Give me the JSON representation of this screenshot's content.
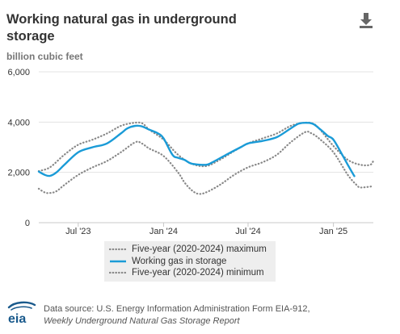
{
  "header": {
    "title": "Working natural gas in underground storage",
    "unit_label": "billion cubic feet",
    "download_icon": "download-icon"
  },
  "colors": {
    "working_gas": "#1a9bd7",
    "five_year": "#888888",
    "grid": "#e3e3e3",
    "axis_text": "#333333",
    "legend_bg": "#eeeeee",
    "logo_blue": "#1a5a8c"
  },
  "chart_data": {
    "type": "line",
    "title": "Working natural gas in underground storage",
    "ylabel": "billion cubic feet",
    "xlim": [
      "2023-04-07",
      "2025-03-28"
    ],
    "ylim": [
      0,
      6000
    ],
    "y_ticks": [
      0,
      2000,
      4000,
      6000
    ],
    "y_tick_labels": [
      "0",
      "2,000",
      "4,000",
      "6,000"
    ],
    "x_ticks": [
      "2023-07-01",
      "2024-01-01",
      "2024-07-01",
      "2025-01-01"
    ],
    "x_tick_labels": [
      "Jul '23",
      "Jan '24",
      "Jul '24",
      "Jan '25"
    ],
    "grid": true,
    "legend_position": "bottom",
    "series": [
      {
        "name": "Five-year (2020-2024) maximum",
        "style": "dotted",
        "points": [
          [
            "2023-04-07",
            2050
          ],
          [
            "2023-05-01",
            2200
          ],
          [
            "2023-06-01",
            2700
          ],
          [
            "2023-07-01",
            3100
          ],
          [
            "2023-08-01",
            3300
          ],
          [
            "2023-09-01",
            3550
          ],
          [
            "2023-10-01",
            3850
          ],
          [
            "2023-10-25",
            3960
          ],
          [
            "2023-11-15",
            3960
          ],
          [
            "2023-12-01",
            3700
          ],
          [
            "2024-01-01",
            3300
          ],
          [
            "2024-02-01",
            2700
          ],
          [
            "2024-03-01",
            2350
          ],
          [
            "2024-04-01",
            2250
          ],
          [
            "2024-05-01",
            2500
          ],
          [
            "2024-06-01",
            2850
          ],
          [
            "2024-07-01",
            3150
          ],
          [
            "2024-08-01",
            3350
          ],
          [
            "2024-09-01",
            3550
          ],
          [
            "2024-10-01",
            3850
          ],
          [
            "2024-10-25",
            3960
          ],
          [
            "2024-11-15",
            3960
          ],
          [
            "2024-12-01",
            3750
          ],
          [
            "2025-01-01",
            3050
          ],
          [
            "2025-02-01",
            2500
          ],
          [
            "2025-03-01",
            2300
          ],
          [
            "2025-03-21",
            2300
          ],
          [
            "2025-03-28",
            2450
          ]
        ]
      },
      {
        "name": "Working gas in storage",
        "style": "solid",
        "points": [
          [
            "2023-04-07",
            2030
          ],
          [
            "2023-04-20",
            1900
          ],
          [
            "2023-05-01",
            1860
          ],
          [
            "2023-05-15",
            2000
          ],
          [
            "2023-06-01",
            2300
          ],
          [
            "2023-07-01",
            2800
          ],
          [
            "2023-08-01",
            3000
          ],
          [
            "2023-09-01",
            3150
          ],
          [
            "2023-10-01",
            3550
          ],
          [
            "2023-10-15",
            3750
          ],
          [
            "2023-11-01",
            3850
          ],
          [
            "2023-11-15",
            3830
          ],
          [
            "2023-12-01",
            3700
          ],
          [
            "2023-12-20",
            3550
          ],
          [
            "2024-01-01",
            3350
          ],
          [
            "2024-01-20",
            2700
          ],
          [
            "2024-02-01",
            2580
          ],
          [
            "2024-02-15",
            2500
          ],
          [
            "2024-03-01",
            2350
          ],
          [
            "2024-04-01",
            2300
          ],
          [
            "2024-04-15",
            2400
          ],
          [
            "2024-05-15",
            2700
          ],
          [
            "2024-06-15",
            3000
          ],
          [
            "2024-07-01",
            3150
          ],
          [
            "2024-08-01",
            3250
          ],
          [
            "2024-09-01",
            3400
          ],
          [
            "2024-10-01",
            3750
          ],
          [
            "2024-10-20",
            3950
          ],
          [
            "2024-11-15",
            3950
          ],
          [
            "2024-12-01",
            3750
          ],
          [
            "2024-12-20",
            3450
          ],
          [
            "2025-01-01",
            3300
          ],
          [
            "2025-01-20",
            2700
          ],
          [
            "2025-02-01",
            2300
          ],
          [
            "2025-02-15",
            1850
          ]
        ]
      },
      {
        "name": "Five-year (2020-2024) minimum",
        "style": "dotted",
        "points": [
          [
            "2023-04-07",
            1350
          ],
          [
            "2023-04-20",
            1200
          ],
          [
            "2023-05-01",
            1180
          ],
          [
            "2023-05-15",
            1250
          ],
          [
            "2023-06-01",
            1500
          ],
          [
            "2023-07-01",
            1900
          ],
          [
            "2023-08-01",
            2200
          ],
          [
            "2023-09-01",
            2450
          ],
          [
            "2023-10-01",
            2800
          ],
          [
            "2023-11-01",
            3200
          ],
          [
            "2023-11-15",
            3150
          ],
          [
            "2023-12-01",
            2950
          ],
          [
            "2024-01-01",
            2650
          ],
          [
            "2024-02-01",
            2000
          ],
          [
            "2024-02-15",
            1600
          ],
          [
            "2024-03-01",
            1300
          ],
          [
            "2024-03-15",
            1150
          ],
          [
            "2024-04-01",
            1200
          ],
          [
            "2024-05-01",
            1500
          ],
          [
            "2024-06-01",
            1900
          ],
          [
            "2024-07-01",
            2200
          ],
          [
            "2024-08-01",
            2400
          ],
          [
            "2024-09-01",
            2700
          ],
          [
            "2024-10-01",
            3200
          ],
          [
            "2024-11-01",
            3600
          ],
          [
            "2024-11-15",
            3550
          ],
          [
            "2024-12-01",
            3350
          ],
          [
            "2025-01-01",
            2800
          ],
          [
            "2025-02-01",
            1900
          ],
          [
            "2025-02-20",
            1500
          ],
          [
            "2025-03-01",
            1400
          ],
          [
            "2025-03-28",
            1450
          ]
        ]
      }
    ]
  },
  "legend": {
    "items": [
      {
        "label": "Five-year (2020-2024) maximum"
      },
      {
        "label": "Working gas in storage"
      },
      {
        "label": "Five-year (2020-2024) minimum"
      }
    ]
  },
  "footer": {
    "logo_text": "eia",
    "source_text": "Data source: U.S. Energy Information Administration Form EIA-912,",
    "source_report": "Weekly Underground Natural Gas Storage Report"
  }
}
